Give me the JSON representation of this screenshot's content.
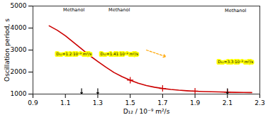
{
  "chart_data": {
    "type": "line",
    "xlabel": "D₁₂ / 10⁻⁹ m²/s",
    "ylabel": "Oscillation period, s",
    "xlim": [
      0.9,
      2.3
    ],
    "ylim": [
      1000,
      5000
    ],
    "xticks": [
      0.9,
      1.1,
      1.3,
      1.5,
      1.7,
      1.9,
      2.1,
      2.3
    ],
    "yticks": [
      1000,
      2000,
      3000,
      4000,
      5000
    ],
    "series": [
      {
        "x": [
          1.0,
          1.05,
          1.1,
          1.15,
          1.2,
          1.25,
          1.3,
          1.35,
          1.4,
          1.45,
          1.5,
          1.55,
          1.6,
          1.65,
          1.7,
          1.75,
          1.8,
          1.85,
          1.9,
          1.95,
          2.0,
          2.05,
          2.1,
          2.15,
          2.2,
          2.25
        ],
        "values": [
          4100,
          3900,
          3650,
          3350,
          3050,
          2750,
          2480,
          2220,
          1980,
          1790,
          1630,
          1490,
          1390,
          1310,
          1255,
          1210,
          1175,
          1150,
          1130,
          1115,
          1105,
          1095,
          1085,
          1078,
          1072,
          1068
        ],
        "color": "#cc0000",
        "type": "line"
      },
      {
        "x": [
          1.5,
          1.7,
          1.9,
          2.1
        ],
        "values": [
          1630,
          1255,
          1130,
          1085
        ],
        "color": "#cc0000",
        "type": "scatter",
        "marker": "+"
      }
    ],
    "arrows": [
      {
        "x1": 1.2,
        "y1": 1250,
        "x2": 1.2,
        "y2": 1000,
        "color": "#111111"
      },
      {
        "x1": 1.3,
        "y1": 1250,
        "x2": 1.3,
        "y2": 1000,
        "color": "#111111"
      },
      {
        "x1": 2.1,
        "y1": 1250,
        "x2": 2.1,
        "y2": 1000,
        "color": "#111111"
      },
      {
        "x1": 1.6,
        "y1": 3000,
        "x2": 1.72,
        "y2": 2700,
        "color": "orange",
        "line_style": "dashed"
      }
    ],
    "annotations": [
      {
        "title": "Methanol",
        "text": "D₁₂=1.2·10⁻⁹ m²/s"
      },
      {
        "title": "Methanol",
        "text": "D₁₂=1.41·10⁻⁹ m²/s"
      },
      {
        "title": "Methanol",
        "text": "D₁₂=3.3·10⁻⁹ m²/s"
      }
    ]
  }
}
